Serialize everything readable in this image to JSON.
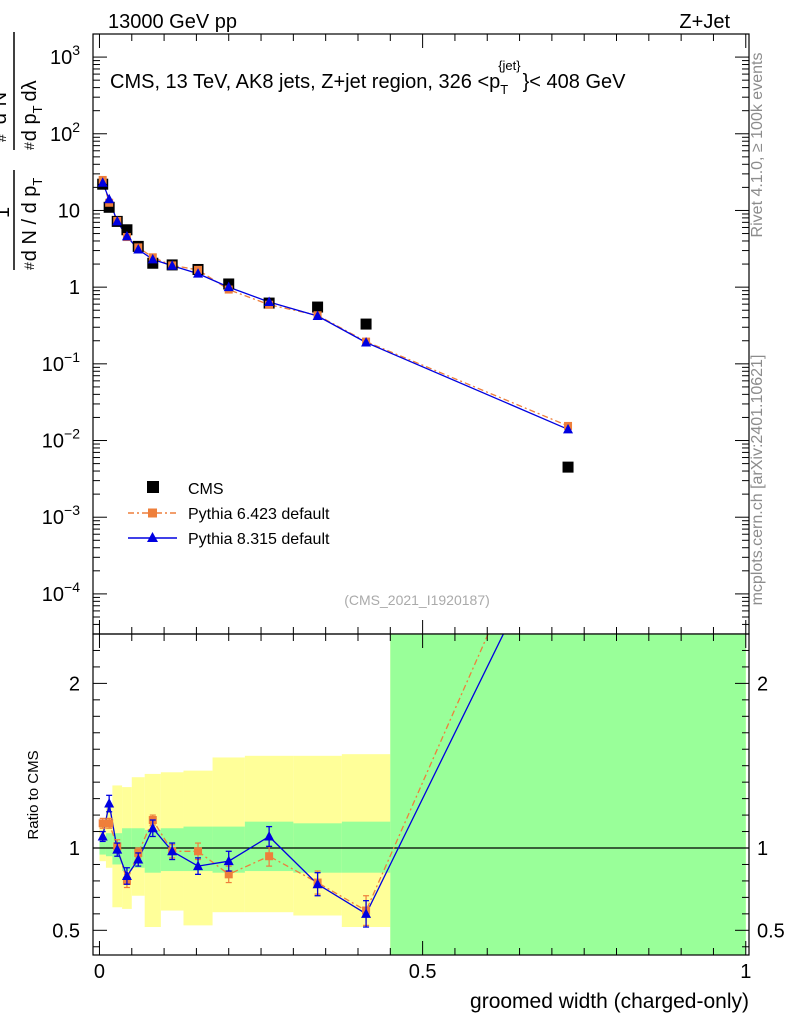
{
  "chart_data": {
    "type": "scatter",
    "header": {
      "left": "13000 GeV pp",
      "right": "Z+Jet"
    },
    "title": {
      "prefix": "CMS, 13 TeV, AK8 jets, Z+jet region, 326 <",
      "p": "p",
      "sub": "T",
      "sup": "{jet}",
      "suffix": "}< 408 GeV"
    },
    "watermark": "(CMS_2021_I1920187)",
    "side_text": {
      "rivet": "Rivet 4.1.0, ≥ 100k events",
      "mcplots": "mcplots.cern.ch [arXiv:2401.10621]"
    },
    "ylabel_main": {
      "den_hash": "#",
      "den": "d N / d p",
      "den_sub": "T",
      "num": "1",
      "frac2_num_hash": "#",
      "frac2_num_sup": "2",
      "frac2_num": "N",
      "frac2_den_hash": "#",
      "frac2_den": "d p",
      "frac2_den_sub": "T",
      "frac2_den_tail": "dλ"
    },
    "ylabel_ratio": "Ratio to CMS",
    "xlabel": "groomed width (charged-only)",
    "xlim": [
      -0.01,
      1.005
    ],
    "ylim_main": [
      3e-05,
      2000
    ],
    "ylim_ratio": [
      0.35,
      2.3
    ],
    "x_ticks": [
      {
        "v": 0,
        "label": "0"
      },
      {
        "v": 0.5,
        "label": "0.5"
      },
      {
        "v": 1,
        "label": "1"
      }
    ],
    "y_ticks_main": [
      {
        "v": 0.0001,
        "base": "10",
        "exp": "−4"
      },
      {
        "v": 0.001,
        "base": "10",
        "exp": "−3"
      },
      {
        "v": 0.01,
        "base": "10",
        "exp": "−2"
      },
      {
        "v": 0.1,
        "base": "10",
        "exp": "−1"
      },
      {
        "v": 1,
        "base": "1",
        "exp": ""
      },
      {
        "v": 10,
        "base": "10",
        "exp": ""
      },
      {
        "v": 100,
        "base": "10",
        "exp": "2"
      },
      {
        "v": 1000,
        "base": "10",
        "exp": "3"
      }
    ],
    "y_ticks_ratio": [
      {
        "v": 0.5,
        "label": "0.5"
      },
      {
        "v": 1,
        "label": "1"
      },
      {
        "v": 2,
        "label": "2"
      }
    ],
    "legend": [
      {
        "name": "CMS",
        "label": "CMS"
      },
      {
        "name": "pythia6",
        "label": "Pythia 6.423 default"
      },
      {
        "name": "pythia8",
        "label": "Pythia 8.315 default"
      }
    ],
    "colors": {
      "cms": "#000000",
      "pythia6": "#ee7f3b",
      "pythia8": "#0000e0",
      "band_inner": "#99ff99",
      "band_outer": "#ffff99"
    },
    "bins": [
      {
        "lo": 0.0,
        "hi": 0.01
      },
      {
        "lo": 0.01,
        "hi": 0.02
      },
      {
        "lo": 0.02,
        "hi": 0.035
      },
      {
        "lo": 0.035,
        "hi": 0.05
      },
      {
        "lo": 0.05,
        "hi": 0.07
      },
      {
        "lo": 0.07,
        "hi": 0.095
      },
      {
        "lo": 0.095,
        "hi": 0.13
      },
      {
        "lo": 0.13,
        "hi": 0.175
      },
      {
        "lo": 0.175,
        "hi": 0.225
      },
      {
        "lo": 0.225,
        "hi": 0.3
      },
      {
        "lo": 0.3,
        "hi": 0.375
      },
      {
        "lo": 0.375,
        "hi": 0.45
      },
      {
        "lo": 0.45,
        "hi": 1.0
      }
    ],
    "x": [
      0.005,
      0.015,
      0.0275,
      0.0425,
      0.06,
      0.0825,
      0.1125,
      0.1525,
      0.2,
      0.2625,
      0.3375,
      0.4125,
      0.725
    ],
    "series": [
      {
        "name": "CMS",
        "values": [
          22,
          11,
          7.2,
          5.6,
          3.4,
          2.05,
          1.95,
          1.7,
          1.1,
          0.62,
          0.55,
          0.33,
          0.0045
        ]
      },
      {
        "name": "Pythia 6.423 default",
        "values": [
          25,
          12.6,
          7.3,
          4.5,
          3.3,
          2.45,
          1.92,
          1.68,
          0.93,
          0.59,
          0.43,
          0.195,
          0.0155
        ]
      },
      {
        "name": "Pythia 8.315 default",
        "values": [
          23,
          14,
          7.2,
          4.6,
          3.1,
          2.3,
          1.9,
          1.5,
          1.0,
          0.64,
          0.42,
          0.19,
          0.014
        ]
      }
    ],
    "ratio": [
      {
        "name": "Pythia 6.423 default",
        "values": [
          1.15,
          1.15,
          1.01,
          0.8,
          0.97,
          1.17,
          0.98,
          0.98,
          0.84,
          0.95,
          0.79,
          0.62,
          3.4
        ],
        "errors": [
          0.03,
          0.03,
          0.04,
          0.04,
          0.03,
          0.03,
          0.04,
          0.05,
          0.05,
          0.06,
          0.07,
          0.09,
          0.3
        ]
      },
      {
        "name": "Pythia 8.315 default",
        "values": [
          1.07,
          1.27,
          0.99,
          0.83,
          0.93,
          1.12,
          0.98,
          0.89,
          0.92,
          1.07,
          0.78,
          0.6,
          3.1
        ],
        "errors": [
          0.03,
          0.05,
          0.04,
          0.05,
          0.04,
          0.05,
          0.05,
          0.05,
          0.06,
          0.06,
          0.07,
          0.08,
          0.3
        ]
      }
    ],
    "bands": {
      "inner_lo": [
        0.96,
        0.95,
        0.9,
        0.86,
        0.88,
        0.85,
        0.86,
        0.86,
        0.85,
        0.86,
        0.85,
        0.85,
        0.35
      ],
      "inner_hi": [
        1.04,
        1.09,
        1.09,
        1.12,
        1.12,
        1.11,
        1.12,
        1.13,
        1.13,
        1.16,
        1.15,
        1.16,
        2.3
      ],
      "outer_lo": [
        0.92,
        0.88,
        0.64,
        0.63,
        0.71,
        0.52,
        0.62,
        0.53,
        0.61,
        0.61,
        0.59,
        0.52,
        0.35
      ],
      "outer_hi": [
        1.14,
        1.26,
        1.38,
        1.37,
        1.43,
        1.45,
        1.46,
        1.47,
        1.55,
        1.56,
        1.56,
        1.57,
        2.3
      ]
    }
  }
}
